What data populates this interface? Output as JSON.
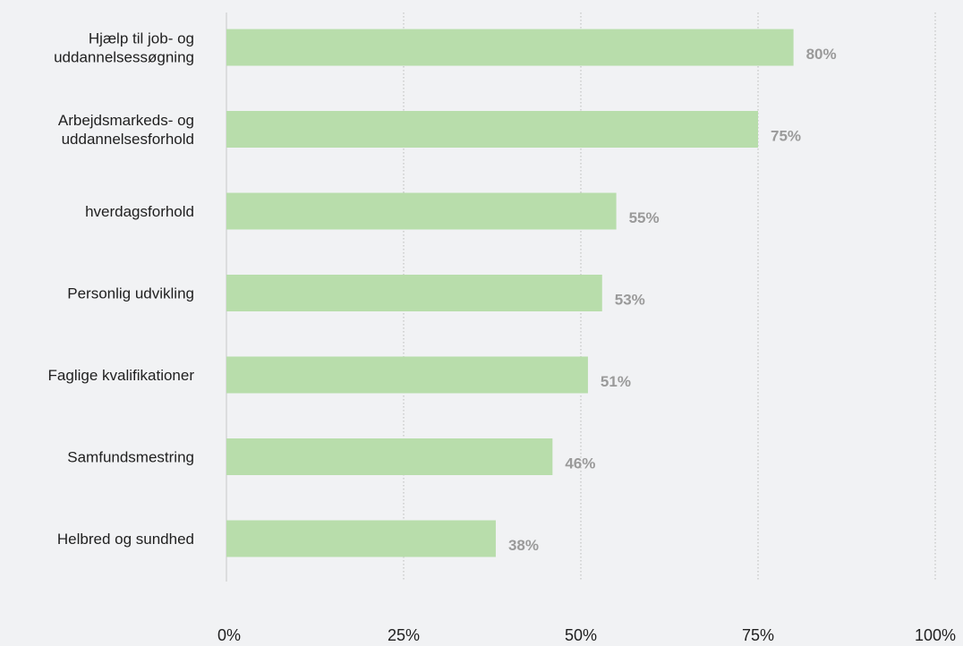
{
  "chart_data": {
    "type": "bar",
    "orientation": "horizontal",
    "title": "",
    "xlabel": "",
    "ylabel": "",
    "categories": [
      [
        "Hjælp til job- og",
        "uddannelsessøgning"
      ],
      [
        "Arbejdsmarkeds- og",
        "uddannelsesforhold"
      ],
      [
        "hverdagsforhold"
      ],
      [
        "Personlig udvikling"
      ],
      [
        "Faglige kvalifikationer"
      ],
      [
        "Samfundsmestring"
      ],
      [
        "Helbred og sundhed"
      ]
    ],
    "values": [
      80,
      75,
      55,
      53,
      51,
      46,
      38
    ],
    "value_labels": [
      "80%",
      "75%",
      "55%",
      "53%",
      "51%",
      "46%",
      "38%"
    ],
    "xlim": [
      0,
      100
    ],
    "x_ticks": [
      0,
      25,
      50,
      75,
      100
    ],
    "x_tick_labels": [
      "0%",
      "25%",
      "50%",
      "75%",
      "100%"
    ],
    "grid": "vertical-dotted",
    "legend": "none",
    "colors": {
      "bar": "#b8ddab",
      "grid": "#b9b9b9",
      "axis": "#c8c8c8",
      "value_label": "#9a9a9a",
      "text": "#1f1f1f",
      "background": "#f1f2f4"
    }
  }
}
